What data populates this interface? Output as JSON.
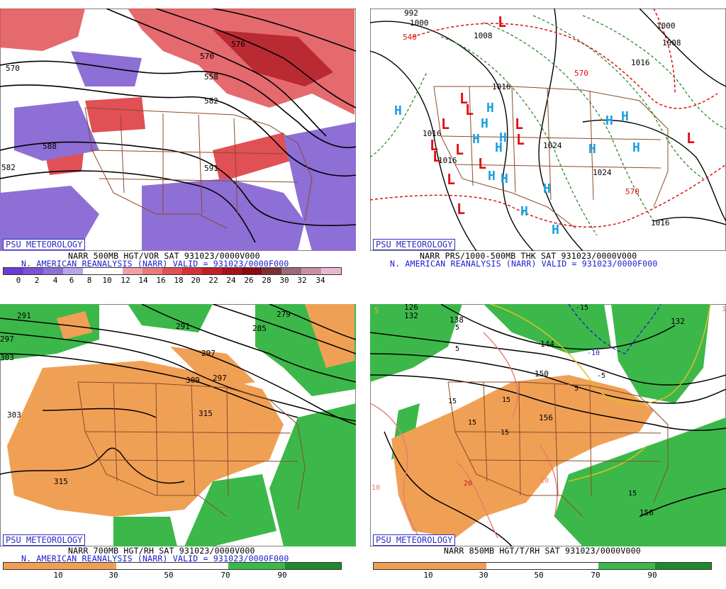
{
  "panels": [
    {
      "badge": "PSU METEOROLOGY",
      "title_line": "NARR 500MB HGT/VOR SAT 931023/0000V000",
      "valid_line": "N. AMERICAN REANALYSIS (NARR) VALID = 931023/0000F000",
      "colorbar_labels": [
        "0",
        "2",
        "4",
        "6",
        "8",
        "10",
        "12",
        "14",
        "16",
        "18",
        "20",
        "22",
        "24",
        "26",
        "28",
        "30",
        "32",
        "34"
      ],
      "contour_labels": [
        "570",
        "576",
        "582",
        "558",
        "570",
        "582",
        "588",
        "591"
      ],
      "colors": {
        "vor_purple": "#8e6fd6",
        "vor_red": "#e05055",
        "vor_darkred": "#a8101a"
      }
    },
    {
      "badge": "PSU METEOROLOGY",
      "title_line": "NARR PRS/1000-500MB THK SAT 931023/0000V000",
      "valid_line": "N. AMERICAN REANALYSIS (NARR) VALID = 931023/0000F000",
      "contour_labels": [
        "992",
        "1000",
        "1008",
        "1016",
        "1016",
        "1024",
        "1024",
        "1016",
        "1008",
        "1016",
        "1000",
        "1016",
        "570",
        "570",
        "540"
      ],
      "high_symbol": "H",
      "low_symbol": "L",
      "colors": {
        "high": "#1aa0e0",
        "low": "#e01010",
        "thickness_cold": "#1a7a1a",
        "thickness_warm": "#e01010"
      }
    },
    {
      "badge": "PSU METEOROLOGY",
      "title_line": "NARR 700MB HGT/RH SAT 931023/0000V000",
      "valid_line": "N. AMERICAN REANALYSIS (NARR) VALID = 931023/0000F000",
      "colorbar_labels": [
        "10",
        "30",
        "50",
        "70",
        "90"
      ],
      "contour_labels": [
        "291",
        "297",
        "303",
        "309",
        "297",
        "291",
        "285",
        "279",
        "315",
        "315",
        "297",
        "303"
      ],
      "colors": {
        "dry": "#f0a055",
        "moist": "#3cb84a"
      }
    },
    {
      "badge": "PSU METEOROLOGY",
      "title_line": "NARR 850MB HGT/T/RH SAT 931023/0000V000",
      "colorbar_labels": [
        "10",
        "30",
        "50",
        "70",
        "90"
      ],
      "contour_labels": [
        "126",
        "132",
        "138",
        "144",
        "150",
        "156",
        "156",
        "132"
      ],
      "temp_labels": [
        "-15",
        "-10",
        "-5",
        "5",
        "5",
        "5",
        "15",
        "15",
        "15",
        "15",
        "15",
        "20",
        "10",
        "10",
        "10",
        "5"
      ],
      "colors": {
        "dry": "#f0a055",
        "moist": "#3cb84a"
      }
    }
  ]
}
